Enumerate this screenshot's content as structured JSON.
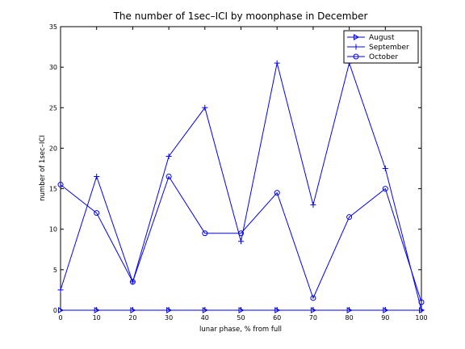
{
  "chart_data": {
    "type": "line",
    "title": "The number of 1sec–ICI by moonphase in December",
    "xlabel": "lunar phase, % from full",
    "ylabel": "number of 1sec–ICI",
    "xlim": [
      0,
      100
    ],
    "ylim": [
      0,
      35
    ],
    "xticks": [
      0,
      10,
      20,
      30,
      40,
      50,
      60,
      70,
      80,
      90,
      100
    ],
    "yticks": [
      0,
      5,
      10,
      15,
      20,
      25,
      30,
      35
    ],
    "grid": false,
    "legend_position": "top-right",
    "line_color": "#0000ff",
    "x": [
      0,
      10,
      20,
      30,
      40,
      50,
      60,
      70,
      80,
      90,
      100
    ],
    "series": [
      {
        "name": "August",
        "marker": "triangle-right",
        "values": [
          0,
          0,
          0,
          0,
          0,
          0,
          0,
          0,
          0,
          0,
          0
        ]
      },
      {
        "name": "September",
        "marker": "plus",
        "values": [
          2.5,
          16.5,
          3.5,
          19,
          25,
          8.5,
          30.5,
          13,
          30.5,
          17.5,
          0
        ]
      },
      {
        "name": "October",
        "marker": "circle",
        "values": [
          15.5,
          12,
          3.5,
          16.5,
          9.5,
          9.5,
          14.5,
          1.5,
          11.5,
          15,
          1
        ]
      }
    ]
  }
}
